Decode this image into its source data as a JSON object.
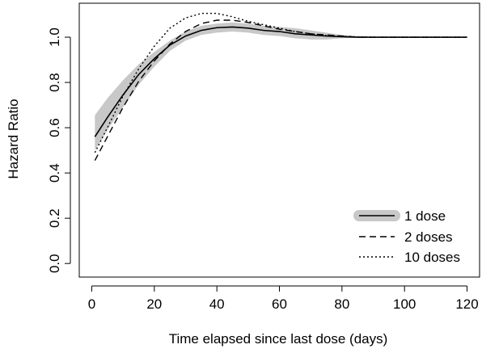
{
  "chart_data": {
    "type": "line",
    "xlabel": "Time elapsed since last dose (days)",
    "ylabel": "Hazard Ratio",
    "xlim": [
      -4,
      124
    ],
    "ylim": [
      -0.06,
      1.15
    ],
    "xticks": [
      0,
      20,
      40,
      60,
      80,
      100,
      120
    ],
    "yticks": [
      0.0,
      0.2,
      0.4,
      0.6,
      0.8,
      1.0
    ],
    "ytick_labels": [
      "0.0",
      "0.2",
      "0.4",
      "0.6",
      "0.8",
      "1.0"
    ],
    "grid": false,
    "legend_position": "bottom-right",
    "band": {
      "series": "1 dose",
      "color": "#c8c8c8",
      "x": [
        1,
        5,
        10,
        15,
        20,
        25,
        30,
        35,
        40,
        45,
        50,
        55,
        60,
        65,
        70,
        75,
        80,
        85,
        90,
        95,
        100,
        105,
        110,
        115,
        120
      ],
      "lower": [
        0.5,
        0.59,
        0.69,
        0.79,
        0.87,
        0.94,
        0.985,
        1.01,
        1.02,
        1.025,
        1.02,
        1.01,
        1.005,
        0.995,
        0.99,
        0.99,
        0.995,
        0.998,
        1.0,
        1.0,
        1.0,
        1.0,
        1.0,
        1.0,
        1.0
      ],
      "upper": [
        0.655,
        0.73,
        0.81,
        0.88,
        0.935,
        0.985,
        1.025,
        1.05,
        1.06,
        1.065,
        1.06,
        1.05,
        1.045,
        1.04,
        1.03,
        1.02,
        1.01,
        1.005,
        1.002,
        1.0,
        1.0,
        1.0,
        1.0,
        1.0,
        1.0
      ]
    },
    "series": [
      {
        "name": "1 dose",
        "style": "solid",
        "color": "#000000",
        "x": [
          1,
          5,
          10,
          15,
          20,
          25,
          30,
          35,
          40,
          45,
          50,
          55,
          60,
          65,
          70,
          75,
          80,
          85,
          90,
          95,
          100,
          105,
          110,
          115,
          120
        ],
        "values": [
          0.56,
          0.645,
          0.745,
          0.835,
          0.905,
          0.965,
          1.005,
          1.03,
          1.042,
          1.045,
          1.04,
          1.03,
          1.025,
          1.015,
          1.01,
          1.005,
          1.002,
          1.0,
          1.0,
          1.0,
          1.0,
          1.0,
          1.0,
          1.0,
          1.0
        ]
      },
      {
        "name": "2 doses",
        "style": "dashed",
        "color": "#000000",
        "x": [
          1,
          5,
          10,
          15,
          20,
          25,
          30,
          35,
          40,
          45,
          50,
          55,
          60,
          65,
          70,
          75,
          80,
          85,
          90,
          95,
          100,
          105,
          110,
          115,
          120
        ],
        "values": [
          0.455,
          0.56,
          0.69,
          0.805,
          0.895,
          0.97,
          1.025,
          1.06,
          1.075,
          1.075,
          1.065,
          1.05,
          1.035,
          1.025,
          1.015,
          1.01,
          1.005,
          1.0,
          1.0,
          1.0,
          1.0,
          1.0,
          1.0,
          1.0,
          1.0
        ]
      },
      {
        "name": "10 doses",
        "style": "dotted",
        "color": "#000000",
        "x": [
          1,
          5,
          10,
          15,
          20,
          25,
          30,
          35,
          40,
          45,
          50,
          55,
          60,
          65,
          70,
          75,
          80,
          85,
          90,
          95,
          100,
          105,
          110,
          115,
          120
        ],
        "values": [
          0.49,
          0.6,
          0.74,
          0.86,
          0.96,
          1.04,
          1.085,
          1.105,
          1.105,
          1.09,
          1.07,
          1.055,
          1.04,
          1.025,
          1.015,
          1.008,
          1.004,
          1.001,
          1.0,
          1.0,
          1.0,
          1.0,
          1.0,
          1.0,
          1.0
        ]
      }
    ]
  }
}
